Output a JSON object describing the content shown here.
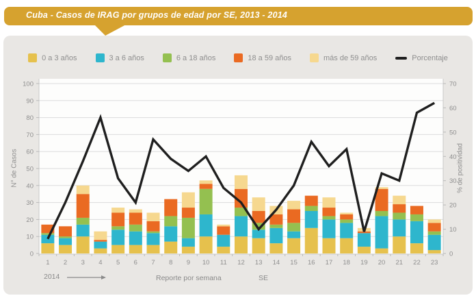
{
  "banner": {
    "title": "Cuba - Casos de IRAG por grupos de edad por SE, 2013 - 2014",
    "color": "#d6a22f"
  },
  "legend": {
    "line_label": "Porcentaje",
    "line_color": "#1f1f1f"
  },
  "footer": {
    "year": "2014",
    "axis_note": "Reporte por semana",
    "se_label": "SE"
  },
  "chart_data": {
    "type": "bar",
    "stacked": true,
    "grid": true,
    "legend_position": "top",
    "title": "Cuba - Casos de IRAG por grupos de edad por SE, 2013 - 2014",
    "categories": [
      "1",
      "2",
      "3",
      "4",
      "5",
      "6",
      "7",
      "8",
      "9",
      "10",
      "11",
      "12",
      "13",
      "14",
      "15",
      "16",
      "17",
      "18",
      "19",
      "20",
      "21",
      "22",
      "23"
    ],
    "series": [
      {
        "name": "0 a 3 años",
        "color": "#e6c14d",
        "values": [
          6,
          5,
          10,
          3,
          5,
          5,
          5,
          7,
          4,
          10,
          4,
          10,
          9,
          6,
          9,
          15,
          9,
          9,
          4,
          3,
          10,
          6,
          2
        ]
      },
      {
        "name": "3 a 6 años",
        "color": "#2eb6cd",
        "values": [
          5,
          4,
          7,
          4,
          9,
          8,
          7,
          9,
          5,
          13,
          7,
          12,
          5,
          9,
          4,
          10,
          11,
          9,
          8,
          19,
          10,
          13,
          9
        ]
      },
      {
        "name": "6 a 18 años",
        "color": "#94c050",
        "values": [
          1,
          1,
          4,
          0,
          2,
          4,
          1,
          6,
          12,
          15,
          0,
          5,
          4,
          2,
          5,
          3,
          2,
          2,
          0,
          3,
          4,
          4,
          2
        ]
      },
      {
        "name": "18 a 59 años",
        "color": "#ea6a22",
        "values": [
          5,
          6,
          14,
          1,
          8,
          7,
          6,
          10,
          6,
          3,
          5,
          11,
          7,
          6,
          8,
          6,
          5,
          3,
          1,
          13,
          5,
          5,
          5
        ]
      },
      {
        "name": "más de 59 años",
        "color": "#f6d88f",
        "values": [
          0,
          0,
          5,
          5,
          3,
          2,
          5,
          0,
          9,
          2,
          1,
          8,
          8,
          5,
          5,
          0,
          6,
          1,
          2,
          1,
          5,
          0,
          2
        ]
      }
    ],
    "line_series": {
      "name": "Porcentaje",
      "axis": "right",
      "color": "#1f1f1f",
      "values": [
        6,
        21,
        38,
        56,
        31,
        21,
        47,
        39,
        34,
        40,
        27,
        21,
        10,
        18,
        28,
        46,
        36,
        43,
        9,
        33,
        30,
        58,
        62
      ]
    },
    "xlabel": "Reporte por semana",
    "x_axis_unit": "SE",
    "ylabel_left": "N° de Casos",
    "ylabel_right": "% de positividad",
    "ylim_left": [
      0,
      100
    ],
    "ylim_right": [
      0,
      70
    ],
    "left_ticks": [
      0,
      10,
      20,
      30,
      40,
      50,
      60,
      70,
      80,
      90,
      100
    ],
    "right_ticks": [
      0,
      10,
      20,
      30,
      40,
      50,
      60,
      70
    ]
  }
}
